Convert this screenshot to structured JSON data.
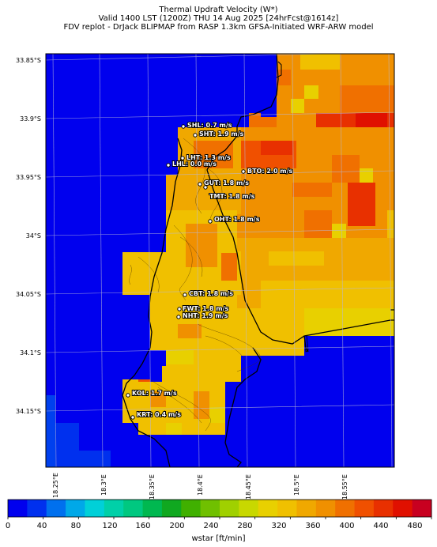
{
  "header": {
    "title": "Thermal Updraft Velocity (W*)",
    "valid": "Valid 1400 LST (1200Z) THU 14 Aug 2025 [24hrFcst@1614z]",
    "source": "FDV replot - DrJack BLIPMAP from RASP 1.3km GFSA-Initiated WRF-ARW model"
  },
  "map": {
    "lat_labels": [
      "33.85°S",
      "33.9°S",
      "33.95°S",
      "34°S",
      "34.05°S",
      "34.1°S",
      "34.15°S"
    ],
    "lon_labels": [
      "18.25°E",
      "18.3°E",
      "18.35°E",
      "18.4°E",
      "18.45°E",
      "18.5°E",
      "18.55°E"
    ],
    "stations": [
      {
        "id": "SHL",
        "label": "SHL: 0.7 m/s"
      },
      {
        "id": "SHT",
        "label": "SHT: 1.9 m/s"
      },
      {
        "id": "LHT",
        "label": "LHT: 1.3 m/s"
      },
      {
        "id": "LHL",
        "label": "LHL: 0.0 m/s"
      },
      {
        "id": "BTO",
        "label": "BTO: 2.0 m/s"
      },
      {
        "id": "GUT",
        "label": "GUT: 1.8 m/s"
      },
      {
        "id": "TMT",
        "label": "TMT: 1.8 m/s"
      },
      {
        "id": "OHT",
        "label": "OHT: 1.8 m/s"
      },
      {
        "id": "CBT",
        "label": "CBT: 1.8 m/s"
      },
      {
        "id": "FWT",
        "label": "FWT: 1.8 m/s"
      },
      {
        "id": "NHT",
        "label": "NHT: 1.9 m/s"
      },
      {
        "id": "KOL",
        "label": "KOL: 1.7 m/s"
      },
      {
        "id": "KRT",
        "label": "KRT: 0.4 m/s"
      }
    ]
  },
  "colorbar": {
    "title": "wstar [ft/min]",
    "tick_labels": [
      "0",
      "40",
      "80",
      "120",
      "160",
      "200",
      "240",
      "280",
      "320",
      "360",
      "400",
      "440",
      "480"
    ],
    "colors": [
      "#0000ee",
      "#0030ee",
      "#0070ee",
      "#00a8e8",
      "#00d0d8",
      "#00d0a8",
      "#00c880",
      "#00b850",
      "#10a820",
      "#40b000",
      "#70c000",
      "#a0d000",
      "#c8d800",
      "#e8d000",
      "#f0c000",
      "#f0a800",
      "#f09000",
      "#f07000",
      "#f05000",
      "#e83000",
      "#e01000",
      "#c80020"
    ]
  }
}
